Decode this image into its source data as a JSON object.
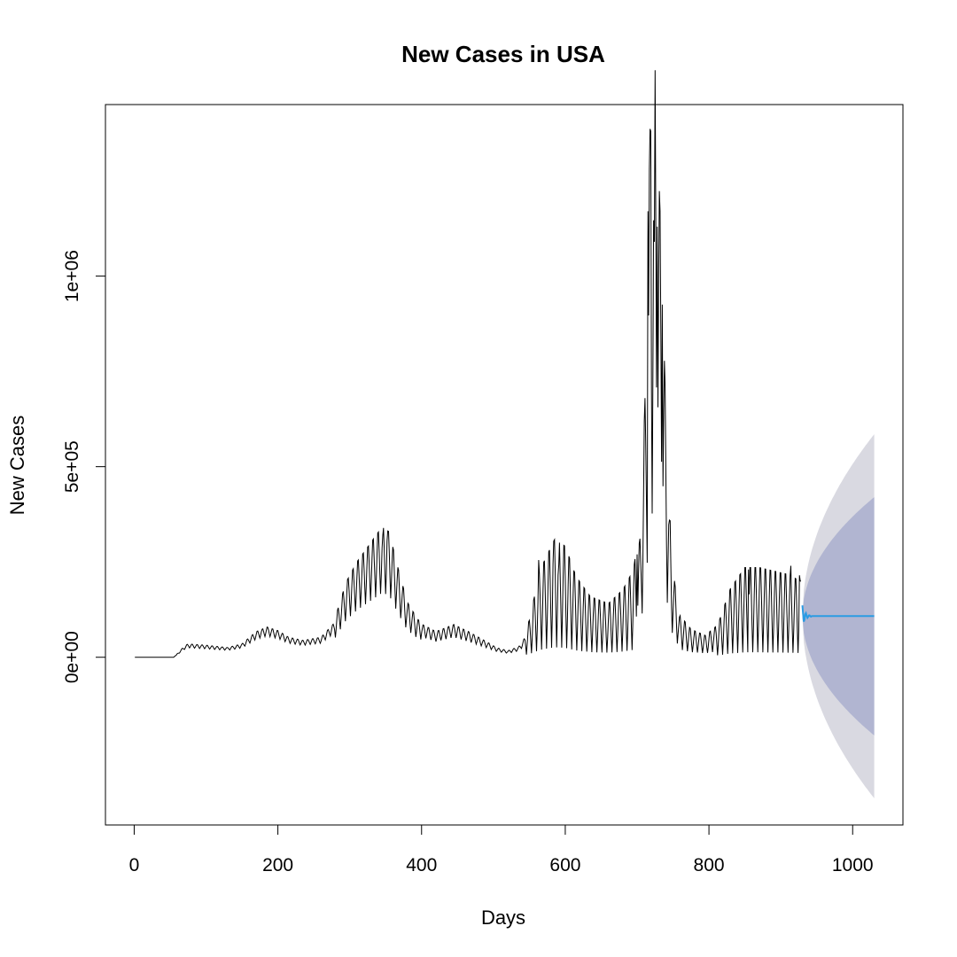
{
  "chart_data": {
    "type": "line",
    "title": "New Cases in USA",
    "xlabel": "Days",
    "ylabel": "New Cases",
    "xlim": [
      -40,
      1070
    ],
    "ylim": [
      -440000,
      1450000
    ],
    "x_ticks": [
      {
        "value": 0,
        "label": "0"
      },
      {
        "value": 200,
        "label": "200"
      },
      {
        "value": 400,
        "label": "400"
      },
      {
        "value": 600,
        "label": "600"
      },
      {
        "value": 800,
        "label": "800"
      },
      {
        "value": 1000,
        "label": "1000"
      }
    ],
    "y_ticks": [
      {
        "value": 0,
        "label": "0e+00"
      },
      {
        "value": 500000,
        "label": "5e+05"
      },
      {
        "value": 1000000,
        "label": "1e+06"
      }
    ],
    "grid": false,
    "legend": "none",
    "observed": {
      "color": "#000000",
      "key_points": [
        [
          1,
          0
        ],
        [
          55,
          0
        ],
        [
          70,
          25000
        ],
        [
          75,
          30000
        ],
        [
          100,
          27000
        ],
        [
          130,
          22000
        ],
        [
          150,
          30000
        ],
        [
          170,
          58000
        ],
        [
          185,
          68000
        ],
        [
          200,
          60000
        ],
        [
          215,
          45000
        ],
        [
          235,
          38000
        ],
        [
          260,
          45000
        ],
        [
          280,
          80000
        ],
        [
          295,
          150000
        ],
        [
          310,
          190000
        ],
        [
          330,
          230000
        ],
        [
          345,
          260000
        ],
        [
          355,
          250000
        ],
        [
          365,
          190000
        ],
        [
          380,
          110000
        ],
        [
          395,
          75000
        ],
        [
          420,
          55000
        ],
        [
          445,
          70000
        ],
        [
          465,
          55000
        ],
        [
          485,
          38000
        ],
        [
          505,
          20000
        ],
        [
          520,
          14000
        ],
        [
          535,
          22000
        ],
        [
          550,
          55000
        ],
        [
          565,
          130000
        ],
        [
          585,
          175000
        ],
        [
          600,
          165000
        ],
        [
          615,
          120000
        ],
        [
          635,
          90000
        ],
        [
          660,
          80000
        ],
        [
          680,
          100000
        ],
        [
          695,
          130000
        ],
        [
          705,
          210000
        ],
        [
          712,
          480000
        ],
        [
          718,
          900000
        ],
        [
          725,
          1000000
        ],
        [
          732,
          760000
        ],
        [
          740,
          420000
        ],
        [
          748,
          170000
        ],
        [
          758,
          70000
        ],
        [
          775,
          45000
        ],
        [
          795,
          35000
        ],
        [
          815,
          55000
        ],
        [
          830,
          100000
        ],
        [
          850,
          130000
        ],
        [
          870,
          130000
        ],
        [
          890,
          125000
        ],
        [
          910,
          120000
        ],
        [
          928,
          110000
        ]
      ],
      "spikes": [
        {
          "x": 346,
          "y": 320000
        },
        {
          "x": 352,
          "y": 305000
        },
        {
          "x": 563,
          "y": 255000
        },
        {
          "x": 583,
          "y": 245000
        },
        {
          "x": 591,
          "y": 242000
        },
        {
          "x": 700,
          "y": 270000
        },
        {
          "x": 715,
          "y": 1170000
        },
        {
          "x": 719,
          "y": 1380000
        },
        {
          "x": 724,
          "y": 1090000
        },
        {
          "x": 728,
          "y": 1130000
        },
        {
          "x": 735,
          "y": 925000
        },
        {
          "x": 745,
          "y": 360000
        },
        {
          "x": 855,
          "y": 230000
        },
        {
          "x": 893,
          "y": 225000
        },
        {
          "x": 914,
          "y": 240000
        },
        {
          "x": 926,
          "y": 215000
        }
      ]
    },
    "forecast": {
      "color": "#2b9be3",
      "x_start": 930,
      "x_end": 1030,
      "mean": 108000,
      "band_80": {
        "color": "#b1b5d1",
        "upper_end": 420000,
        "lower_end": -205000
      },
      "band_95": {
        "color": "#d9d9e1",
        "upper_end": 585000,
        "lower_end": -370000
      }
    }
  }
}
